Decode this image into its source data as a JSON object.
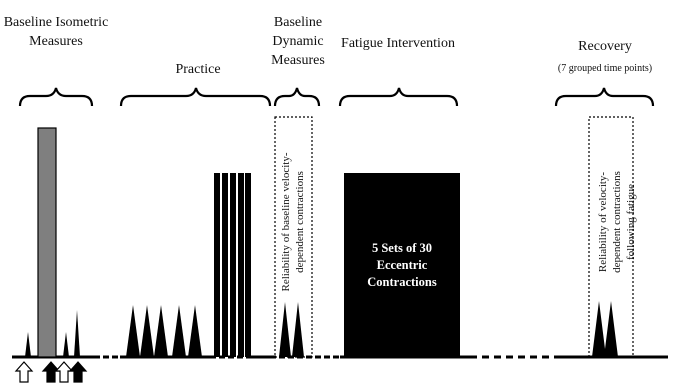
{
  "phases": {
    "baseline_isometric": "Baseline Isometric Measures",
    "practice": "Practice",
    "baseline_dynamic": "Baseline Dynamic Measures",
    "fatigue": "Fatigue Intervention",
    "recovery": "Recovery",
    "recovery_note": "(7 grouped time points)"
  },
  "boxes": {
    "baseline_reliability": "Reliability of baseline velocity-dependent contractions",
    "recovery_reliability": "Reliability of velocity-dependent contractions following fatigue"
  },
  "fatigue_block": "5 Sets of 30 Eccentric Contractions",
  "colors": {
    "ink": "#000000",
    "mvc_bar": "#7f7f7f",
    "background": "#ffffff"
  }
}
